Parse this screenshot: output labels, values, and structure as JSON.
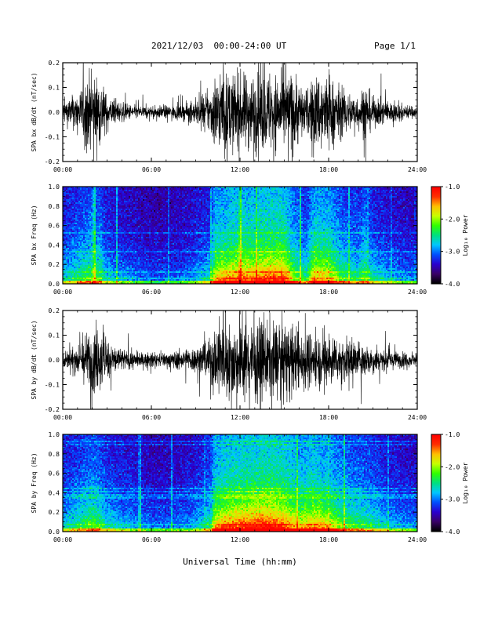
{
  "header": {
    "title": "2021/12/03  00:00-24:00 UT",
    "page": "Page 1/1"
  },
  "footer": {
    "xaxis_title": "Universal Time (hh:mm)"
  },
  "colorbar": {
    "label": "Log₁₀ Power",
    "ticks": [
      "-1.0",
      "-2.0",
      "-3.0",
      "-4.0"
    ],
    "range": [
      -4.0,
      -1.0
    ],
    "colormap": [
      "#000000",
      "#3a0068",
      "#2a00d0",
      "#0050ff",
      "#00c8ff",
      "#00e080",
      "#30ff00",
      "#c8ff00",
      "#ffc000",
      "#ff3000",
      "#ff0000"
    ]
  },
  "colors": {
    "background": "#ffffff",
    "waveform": "#000000",
    "frame": "#000000"
  },
  "chart_data": [
    {
      "type": "line",
      "ylabel": "SPA bx dB/dt (nT/sec)",
      "xlim": [
        0,
        24
      ],
      "ylim": [
        -0.2,
        0.2
      ],
      "xticks": [
        "00:00",
        "06:00",
        "12:00",
        "18:00",
        "24:00"
      ],
      "yticks": [
        "0.2",
        "0.1",
        "0.0",
        "-0.1",
        "-0.2"
      ],
      "amplitude_envelope": {
        "hours": [
          0,
          1,
          1.8,
          2.6,
          3,
          4,
          5,
          6,
          7,
          8,
          9,
          9.5,
          10,
          10.3,
          11,
          12,
          13,
          14,
          15,
          15.8,
          16.5,
          17,
          17.5,
          18,
          19,
          20,
          20.5,
          21,
          22,
          23,
          24
        ],
        "amplitude": [
          0.06,
          0.1,
          0.2,
          0.18,
          0.08,
          0.05,
          0.035,
          0.03,
          0.035,
          0.04,
          0.06,
          0.08,
          0.12,
          0.2,
          0.2,
          0.2,
          0.2,
          0.2,
          0.2,
          0.2,
          0.1,
          0.2,
          0.2,
          0.2,
          0.12,
          0.09,
          0.15,
          0.08,
          0.06,
          0.04,
          0.03
        ]
      }
    },
    {
      "type": "heatmap",
      "ylabel": "SPA bx Freq (Hz)",
      "xlim": [
        0,
        24
      ],
      "ylim": [
        0,
        1.0
      ],
      "xticks": [
        "00:00",
        "06:00",
        "12:00",
        "18:00",
        "24:00"
      ],
      "yticks": [
        "1.0",
        "0.8",
        "0.6",
        "0.4",
        "0.2",
        "0.0"
      ],
      "activity": {
        "hours": [
          0,
          1,
          2,
          2.5,
          3,
          4,
          5,
          6,
          7,
          8,
          9,
          10,
          10.3,
          11,
          12,
          13,
          14,
          15,
          15.8,
          16.5,
          17,
          18,
          19,
          20,
          20.5,
          21,
          22,
          23,
          24
        ],
        "level": [
          0.35,
          0.45,
          0.55,
          0.5,
          0.35,
          0.3,
          0.25,
          0.22,
          0.22,
          0.25,
          0.3,
          0.4,
          0.7,
          0.75,
          0.8,
          0.8,
          0.85,
          0.85,
          0.55,
          0.45,
          0.75,
          0.7,
          0.5,
          0.45,
          0.55,
          0.4,
          0.32,
          0.28,
          0.25
        ]
      }
    },
    {
      "type": "line",
      "ylabel": "SPA by dB/dt (nT/sec)",
      "xlim": [
        0,
        24
      ],
      "ylim": [
        -0.2,
        0.2
      ],
      "xticks": [
        "00:00",
        "06:00",
        "12:00",
        "18:00",
        "24:00"
      ],
      "yticks": [
        "0.2",
        "0.1",
        "0.0",
        "-0.1",
        "-0.2"
      ],
      "amplitude_envelope": {
        "hours": [
          0,
          1,
          1.8,
          2.6,
          3,
          4,
          5,
          6,
          7,
          8,
          9,
          9.5,
          10,
          10.3,
          11,
          12,
          13,
          14,
          15,
          16,
          17,
          18,
          19,
          20,
          21,
          22,
          23,
          24
        ],
        "amplitude": [
          0.04,
          0.08,
          0.16,
          0.17,
          0.1,
          0.06,
          0.04,
          0.035,
          0.04,
          0.05,
          0.07,
          0.08,
          0.12,
          0.2,
          0.2,
          0.2,
          0.2,
          0.2,
          0.2,
          0.17,
          0.14,
          0.13,
          0.11,
          0.1,
          0.07,
          0.05,
          0.04,
          0.03
        ]
      }
    },
    {
      "type": "heatmap",
      "ylabel": "SPA by Freq (Hz)",
      "xlim": [
        0,
        24
      ],
      "ylim": [
        0,
        1.0
      ],
      "xticks": [
        "00:00",
        "06:00",
        "12:00",
        "18:00",
        "24:00"
      ],
      "yticks": [
        "1.0",
        "0.8",
        "0.6",
        "0.4",
        "0.2",
        "0.0"
      ],
      "activity": {
        "hours": [
          0,
          1,
          2,
          2.5,
          3,
          4,
          5,
          6,
          7,
          8,
          9,
          10,
          10.3,
          11,
          12,
          13,
          14,
          15,
          16,
          17,
          18,
          19,
          20,
          21,
          22,
          23,
          24
        ],
        "level": [
          0.35,
          0.45,
          0.55,
          0.5,
          0.4,
          0.35,
          0.3,
          0.25,
          0.25,
          0.28,
          0.32,
          0.45,
          0.72,
          0.8,
          0.85,
          0.88,
          0.9,
          0.85,
          0.7,
          0.78,
          0.7,
          0.55,
          0.5,
          0.45,
          0.35,
          0.3,
          0.28
        ]
      }
    }
  ]
}
